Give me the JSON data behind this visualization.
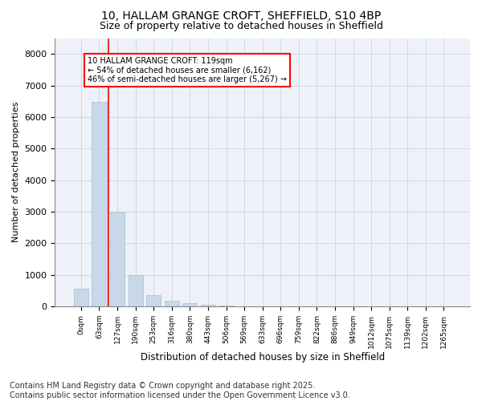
{
  "title_line1": "10, HALLAM GRANGE CROFT, SHEFFIELD, S10 4BP",
  "title_line2": "Size of property relative to detached houses in Sheffield",
  "xlabel": "Distribution of detached houses by size in Sheffield",
  "ylabel": "Number of detached properties",
  "bar_color": "#c8d8e8",
  "bar_edge_color": "#a8bece",
  "grid_color": "#ccd8e4",
  "background_color": "#eef2f8",
  "vline_color": "red",
  "vline_x": 1.5,
  "annotation_text": "10 HALLAM GRANGE CROFT: 119sqm\n← 54% of detached houses are smaller (6,162)\n46% of semi-detached houses are larger (5,267) →",
  "annotation_box_color": "white",
  "annotation_box_edge": "red",
  "categories": [
    "0sqm",
    "63sqm",
    "127sqm",
    "190sqm",
    "253sqm",
    "316sqm",
    "380sqm",
    "443sqm",
    "506sqm",
    "569sqm",
    "633sqm",
    "696sqm",
    "759sqm",
    "822sqm",
    "886sqm",
    "949sqm",
    "1012sqm",
    "1075sqm",
    "1139sqm",
    "1202sqm",
    "1265sqm"
  ],
  "values": [
    550,
    6480,
    3000,
    1000,
    370,
    180,
    100,
    55,
    40,
    0,
    0,
    0,
    0,
    0,
    0,
    0,
    0,
    0,
    0,
    0,
    0
  ],
  "ylim": [
    0,
    8500
  ],
  "yticks": [
    0,
    1000,
    2000,
    3000,
    4000,
    5000,
    6000,
    7000,
    8000
  ],
  "footnote": "Contains HM Land Registry data © Crown copyright and database right 2025.\nContains public sector information licensed under the Open Government Licence v3.0.",
  "footnote_fontsize": 7,
  "title_fontsize": 10,
  "subtitle_fontsize": 9
}
